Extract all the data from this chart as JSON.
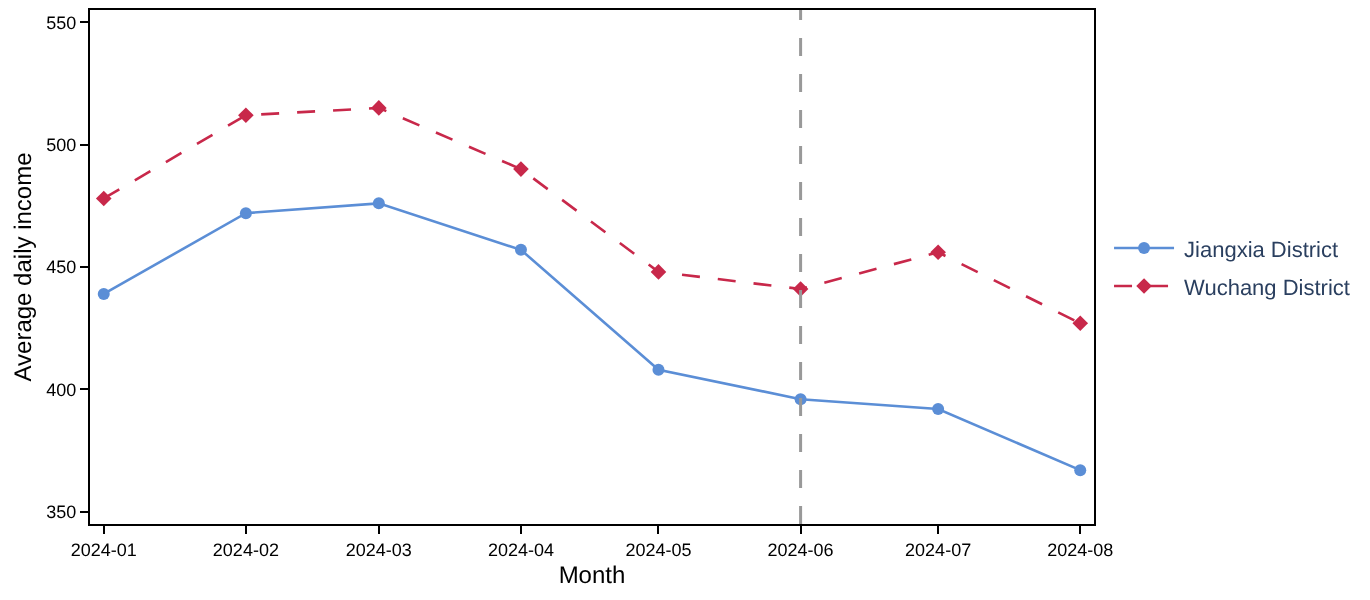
{
  "chart_data": {
    "type": "line",
    "xlabel": "Month",
    "ylabel": "Average daily income",
    "x": [
      "2024-01",
      "2024-02",
      "2024-03",
      "2024-04",
      "2024-05",
      "2024-06",
      "2024-07",
      "2024-08"
    ],
    "series": [
      {
        "name": "Jiangxia District",
        "color": "#5b8ed6",
        "marker": "circle",
        "line_style": "solid",
        "values": [
          439,
          472,
          476,
          457,
          408,
          396,
          392,
          367
        ]
      },
      {
        "name": "Wuchang District",
        "color": "#c8284a",
        "marker": "diamond",
        "line_style": "dashed",
        "values": [
          478,
          512,
          515,
          490,
          448,
          441,
          456,
          427
        ]
      }
    ],
    "xlim": [
      "2023-12-29",
      "2024-08-04"
    ],
    "xticks": [
      {
        "value": "2024-01",
        "label": "2024-01"
      },
      {
        "value": "2024-02",
        "label": "2024-02"
      },
      {
        "value": "2024-03",
        "label": "2024-03"
      },
      {
        "value": "2024-04",
        "label": "2024-04"
      },
      {
        "value": "2024-05",
        "label": "2024-05"
      },
      {
        "value": "2024-06",
        "label": "2024-06"
      },
      {
        "value": "2024-07",
        "label": "2024-07"
      },
      {
        "value": "2024-08",
        "label": "2024-08"
      }
    ],
    "ylim": [
      345,
      555
    ],
    "yticks": [
      350,
      400,
      450,
      500,
      550
    ],
    "ref_lines": [
      {
        "axis": "x",
        "value": "2024-06",
        "color": "#999999",
        "line_style": "dashed"
      }
    ],
    "legend": "right"
  }
}
